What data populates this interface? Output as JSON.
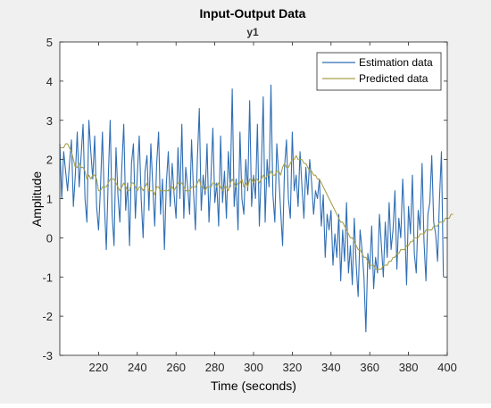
{
  "figure": {
    "title": "Input-Output Data",
    "subtitle": "y1",
    "xlabel": "Time (seconds)",
    "ylabel": "Amplitude",
    "background": "#f0f0f0",
    "axes_background": "#ffffff"
  },
  "legend": {
    "entries": [
      {
        "label": "Estimation data",
        "color": "#2f6eb4"
      },
      {
        "label": "Predicted data",
        "color": "#a8a04a"
      }
    ]
  },
  "chart_data": {
    "type": "line",
    "title": "Input-Output Data",
    "subtitle": "y1",
    "xlabel": "Time (seconds)",
    "ylabel": "Amplitude",
    "xlim": [
      200,
      400
    ],
    "ylim": [
      -3,
      5
    ],
    "xticks": [
      220,
      240,
      260,
      280,
      300,
      320,
      340,
      360,
      380,
      400
    ],
    "yticks": [
      -3,
      -2,
      -1,
      0,
      1,
      2,
      3,
      4,
      5
    ],
    "grid": false,
    "legend_position": "top-right",
    "x_step": 1,
    "series": [
      {
        "name": "Estimation data",
        "color": "#2f6eb4",
        "x_start": 200,
        "values": [
          2.4,
          1.0,
          2.2,
          1.7,
          1.2,
          1.9,
          2.5,
          0.8,
          1.6,
          2.7,
          1.3,
          2.1,
          2.9,
          1.0,
          0.4,
          3.0,
          2.2,
          1.5,
          2.6,
          0.8,
          0.2,
          1.3,
          2.7,
          0.9,
          -0.3,
          1.5,
          3.0,
          0.6,
          -0.2,
          2.3,
          1.1,
          0.4,
          1.8,
          2.9,
          0.7,
          1.4,
          -0.2,
          1.9,
          2.4,
          0.5,
          1.6,
          2.6,
          1.0,
          0.0,
          1.7,
          2.1,
          0.7,
          2.4,
          1.3,
          0.3,
          1.9,
          2.7,
          0.6,
          1.5,
          -0.3,
          1.4,
          2.2,
          0.8,
          1.9,
          1.1,
          0.5,
          2.3,
          1.0,
          2.9,
          0.5,
          1.8,
          1.3,
          0.6,
          2.5,
          1.2,
          0.2,
          2.0,
          3.3,
          0.7,
          1.6,
          1.1,
          2.4,
          0.4,
          1.5,
          2.8,
          0.9,
          1.4,
          0.3,
          2.6,
          0.9,
          1.7,
          0.5,
          2.2,
          1.3,
          3.8,
          0.8,
          1.5,
          0.2,
          2.7,
          1.0,
          0.6,
          2.0,
          1.2,
          3.5,
          0.8,
          1.6,
          1.0,
          2.9,
          0.3,
          1.7,
          3.6,
          0.4,
          2.0,
          1.3,
          3.9,
          1.1,
          0.4,
          2.4,
          1.6,
          0.7,
          -0.2,
          1.8,
          2.5,
          1.0,
          0.5,
          2.7,
          1.2,
          1.6,
          0.8,
          2.2,
          1.3,
          0.5,
          1.8,
          1.1,
          2.0,
          1.4,
          0.6,
          1.2,
          1.0,
          1.5,
          0.3,
          1.1,
          -0.5,
          0.6,
          0.2,
          0.7,
          -0.7,
          0.1,
          -0.5,
          0.6,
          -1.1,
          0.2,
          -0.6,
          0.9,
          -0.9,
          -0.2,
          -1.2,
          0.5,
          -0.7,
          -1.5,
          0.2,
          -0.3,
          -1.0,
          -2.4,
          -0.4,
          -0.8,
          0.3,
          -1.3,
          -0.5,
          -0.9,
          0.6,
          -0.2,
          -1.0,
          0.4,
          -0.5,
          0.9,
          -0.3,
          0.2,
          1.2,
          -0.8,
          0.5,
          0.0,
          1.5,
          0.4,
          -1.2,
          0.8,
          0.1,
          1.6,
          -0.4,
          -0.9,
          0.7,
          0.2,
          1.9,
          -0.1,
          -1.1,
          0.6,
          0.9,
          2.1,
          0.4,
          0.1,
          -0.6,
          1.0,
          2.2,
          -1.0
        ]
      },
      {
        "name": "Predicted data",
        "color": "#a8a04a",
        "x_start": 200,
        "values": [
          2.3,
          2.3,
          2.3,
          2.4,
          2.4,
          2.3,
          2.2,
          2.0,
          1.8,
          1.8,
          1.9,
          1.8,
          1.8,
          1.7,
          1.5,
          1.6,
          1.5,
          1.6,
          1.6,
          1.5,
          1.2,
          1.2,
          1.3,
          1.3,
          1.3,
          1.4,
          1.5,
          1.5,
          1.5,
          1.4,
          1.3,
          1.2,
          1.3,
          1.4,
          1.3,
          1.2,
          1.2,
          1.4,
          1.4,
          1.3,
          1.2,
          1.3,
          1.3,
          1.2,
          1.3,
          1.4,
          1.2,
          1.2,
          1.2,
          1.1,
          1.3,
          1.3,
          1.2,
          1.2,
          1.2,
          1.2,
          1.2,
          1.3,
          1.3,
          1.2,
          1.3,
          1.4,
          1.4,
          1.4,
          1.3,
          1.2,
          1.2,
          1.2,
          1.3,
          1.3,
          1.3,
          1.4,
          1.5,
          1.3,
          1.3,
          1.2,
          1.3,
          1.3,
          1.3,
          1.4,
          1.4,
          1.3,
          1.4,
          1.3,
          1.2,
          1.3,
          1.3,
          1.2,
          1.4,
          1.5,
          1.4,
          1.3,
          1.4,
          1.4,
          1.5,
          1.3,
          1.4,
          1.3,
          1.5,
          1.5,
          1.4,
          1.5,
          1.5,
          1.4,
          1.5,
          1.6,
          1.5,
          1.6,
          1.6,
          1.7,
          1.6,
          1.6,
          1.7,
          1.7,
          1.6,
          1.8,
          1.9,
          1.8,
          1.8,
          1.9,
          2.0,
          2.0,
          2.1,
          2.0,
          2.0,
          2.0,
          1.9,
          1.9,
          1.8,
          1.7,
          1.7,
          1.6,
          1.6,
          1.5,
          1.5,
          1.4,
          1.3,
          1.2,
          1.1,
          1.0,
          0.9,
          0.8,
          0.7,
          0.6,
          0.5,
          0.4,
          0.4,
          0.3,
          0.2,
          0.1,
          0.0,
          0.0,
          -0.1,
          -0.2,
          -0.3,
          -0.3,
          -0.4,
          -0.5,
          -0.5,
          -0.6,
          -0.7,
          -0.7,
          -0.7,
          -0.8,
          -0.8,
          -0.8,
          -0.8,
          -0.7,
          -0.7,
          -0.7,
          -0.6,
          -0.6,
          -0.5,
          -0.5,
          -0.4,
          -0.4,
          -0.3,
          -0.3,
          -0.3,
          -0.2,
          -0.2,
          -0.1,
          -0.1,
          0.0,
          0.0,
          0.0,
          0.1,
          0.1,
          0.1,
          0.2,
          0.2,
          0.2,
          0.2,
          0.3,
          0.3,
          0.3,
          0.4,
          0.4,
          0.4,
          0.5,
          0.5,
          0.5,
          0.6,
          0.6
        ]
      }
    ]
  }
}
